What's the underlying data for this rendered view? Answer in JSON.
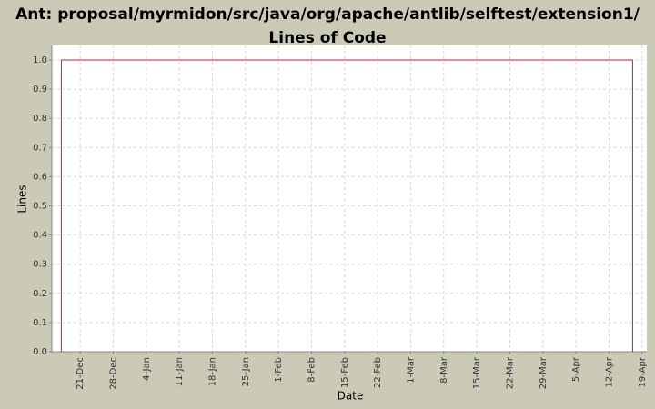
{
  "chart_data": {
    "type": "line",
    "title": "Ant: proposal/myrmidon/src/java/org/apache/antlib/selftest/extension1/ Lines of Code",
    "x_label": "Date",
    "y_label": "Lines",
    "series": [
      {
        "name": "Lines",
        "color": "#c0272d",
        "x": [
          "17-Dec",
          "17-Dec",
          "17-Apr",
          "17-Apr"
        ],
        "values": [
          0,
          1,
          1,
          0
        ]
      }
    ],
    "xlim": [
      "15-Dec",
      "20-Apr"
    ],
    "xticks": [
      "21-Dec",
      "28-Dec",
      "4-Jan",
      "11-Jan",
      "18-Jan",
      "25-Jan",
      "1-Feb",
      "8-Feb",
      "15-Feb",
      "22-Feb",
      "1-Mar",
      "8-Mar",
      "15-Mar",
      "22-Mar",
      "29-Mar",
      "5-Apr",
      "12-Apr",
      "19-Apr"
    ],
    "ylim": [
      0,
      1.05
    ],
    "yticks": [
      {
        "value": 0,
        "label": "0.0"
      },
      0.1,
      0.2,
      0.3,
      0.4,
      0.5,
      0.6,
      0.7,
      0.8,
      0.9,
      {
        "value": 1,
        "label": "1.0"
      }
    ],
    "grid": true
  }
}
